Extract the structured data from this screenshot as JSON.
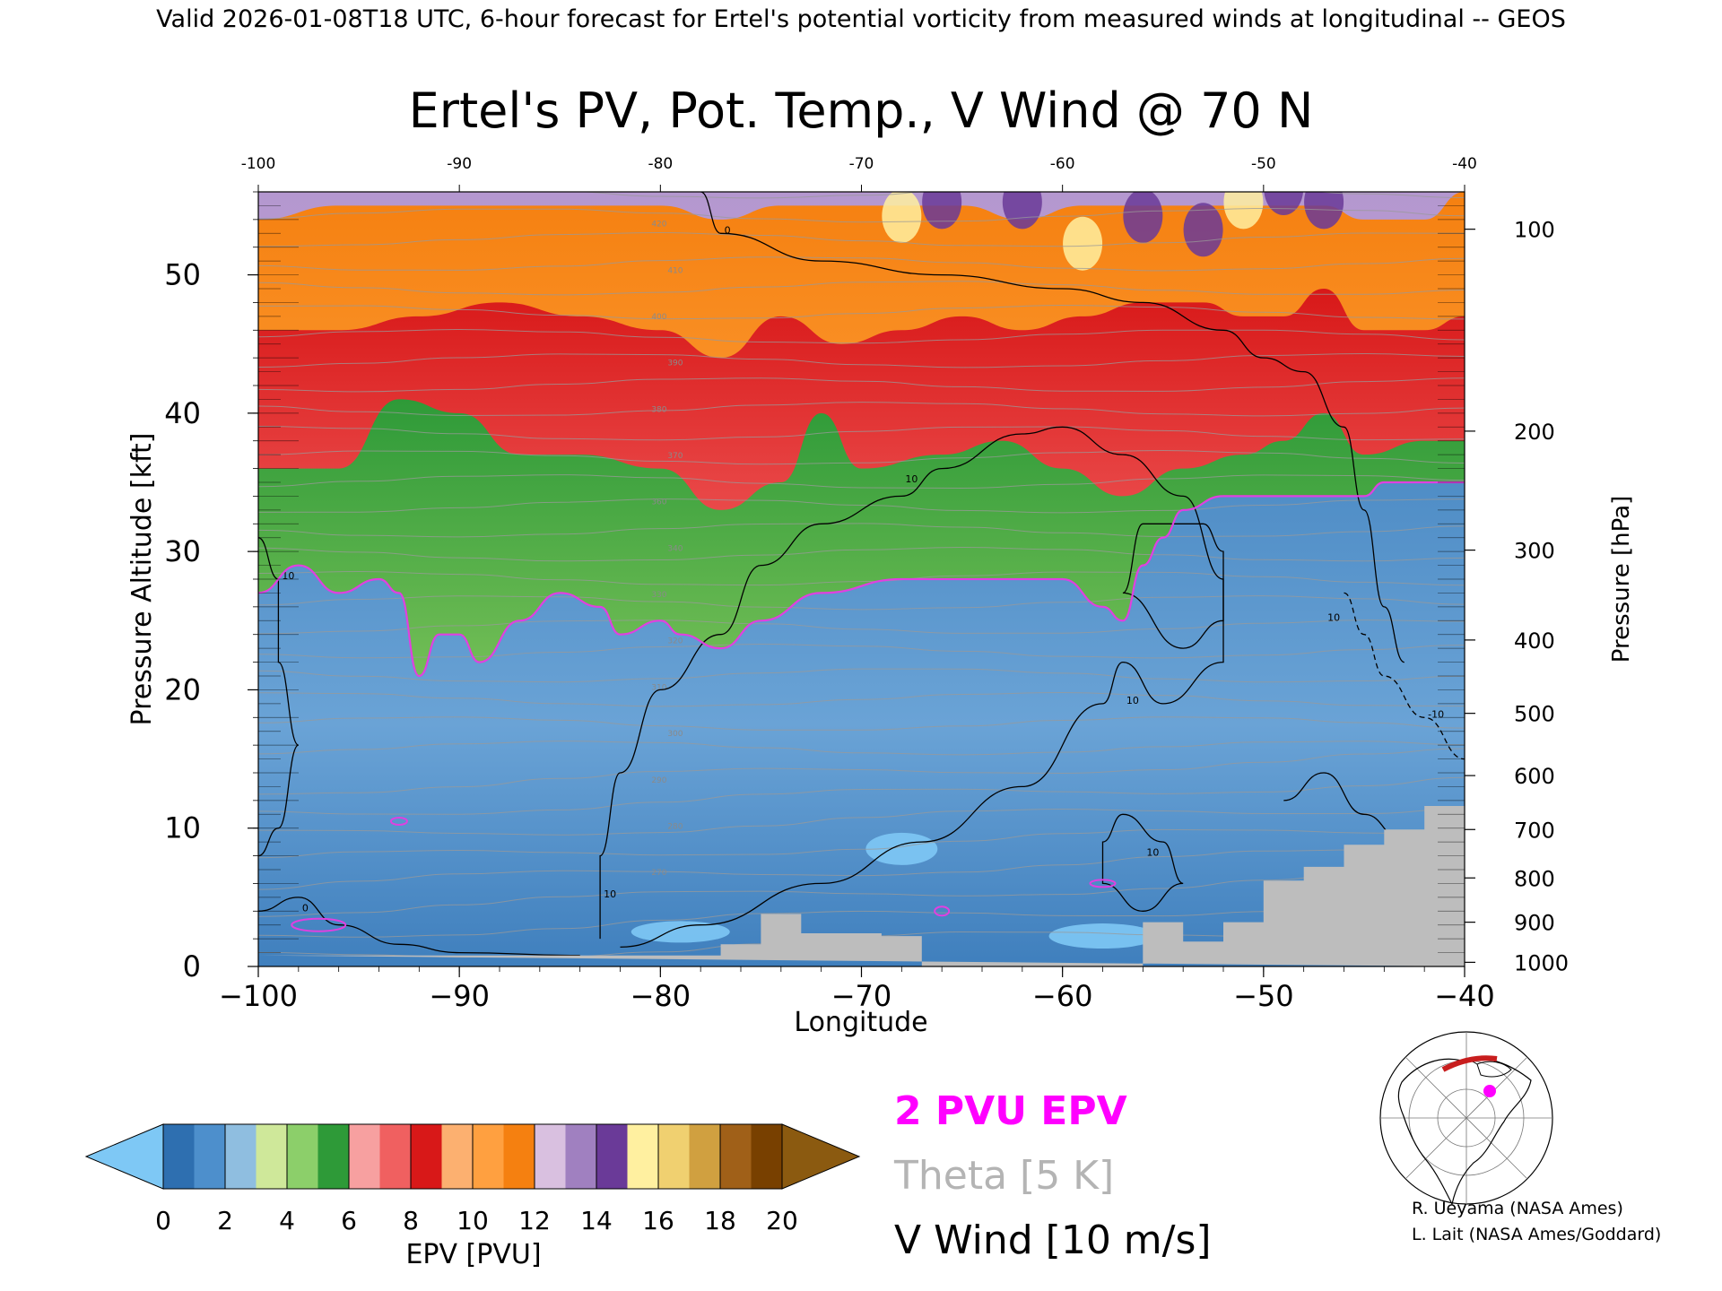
{
  "header": {
    "valid_line": "Valid 2026-01-08T18 UTC, 6-hour forecast for Ertel's potential vorticity from measured winds at longitudinal -- GEOS"
  },
  "chart_data": {
    "type": "heatmap",
    "title": "Ertel's PV, Pot. Temp., V Wind @ 70 N",
    "xlabel": "Longitude",
    "ylabel": "Pressure Altitude [kft]",
    "y2label": "Pressure [hPa]",
    "xlim": [
      -100,
      -40
    ],
    "ylim": [
      0,
      56
    ],
    "x_ticks": [
      -100,
      -90,
      -80,
      -70,
      -60,
      -50,
      -40
    ],
    "x_tick_labels": [
      "−100",
      "−90",
      "−80",
      "−70",
      "−60",
      "−50",
      "−40"
    ],
    "x_top_tick_labels": [
      "-100",
      "-90",
      "-80",
      "-70",
      "-60",
      "-50",
      "-40"
    ],
    "y_ticks": [
      0,
      10,
      20,
      30,
      40,
      50
    ],
    "y_tick_labels": [
      "0",
      "10",
      "20",
      "30",
      "40",
      "50"
    ],
    "pressure_ticks": [
      {
        "label": "100",
        "kft": 53.3
      },
      {
        "label": "200",
        "kft": 38.7
      },
      {
        "label": "300",
        "kft": 30.1
      },
      {
        "label": "400",
        "kft": 23.6
      },
      {
        "label": "500",
        "kft": 18.3
      },
      {
        "label": "600",
        "kft": 13.8
      },
      {
        "label": "700",
        "kft": 9.9
      },
      {
        "label": "800",
        "kft": 6.4
      },
      {
        "label": "900",
        "kft": 3.2
      },
      {
        "label": "1000",
        "kft": 0.3
      }
    ],
    "pv_2pvu_line": [
      [
        -100,
        27
      ],
      [
        -98,
        29
      ],
      [
        -96,
        27
      ],
      [
        -94,
        28
      ],
      [
        -93,
        27
      ],
      [
        -92,
        21
      ],
      [
        -91,
        24
      ],
      [
        -90,
        24
      ],
      [
        -89,
        22
      ],
      [
        -87,
        25
      ],
      [
        -85,
        27
      ],
      [
        -83,
        26
      ],
      [
        -82,
        24
      ],
      [
        -80,
        25
      ],
      [
        -79,
        24
      ],
      [
        -77,
        23
      ],
      [
        -75,
        25
      ],
      [
        -72,
        27
      ],
      [
        -68,
        28
      ],
      [
        -63,
        28
      ],
      [
        -60,
        28
      ],
      [
        -58,
        26
      ],
      [
        -57,
        25
      ],
      [
        -56,
        29
      ],
      [
        -55,
        31
      ],
      [
        -54,
        33
      ],
      [
        -52,
        34
      ],
      [
        -49,
        34
      ],
      [
        -47,
        34
      ],
      [
        -45,
        34
      ],
      [
        -44,
        35
      ],
      [
        -42,
        35
      ],
      [
        -40,
        35
      ]
    ],
    "pv_bands": [
      {
        "name": "green",
        "top": [
          [
            -100,
            36
          ],
          [
            -96,
            36
          ],
          [
            -93,
            41
          ],
          [
            -90,
            40
          ],
          [
            -87,
            37
          ],
          [
            -84,
            37
          ],
          [
            -80,
            36
          ],
          [
            -77,
            33
          ],
          [
            -74,
            35
          ],
          [
            -72,
            40
          ],
          [
            -70,
            36
          ],
          [
            -66,
            37
          ],
          [
            -63,
            38
          ],
          [
            -60,
            36
          ],
          [
            -57,
            34
          ],
          [
            -54,
            36
          ],
          [
            -51,
            37
          ],
          [
            -49,
            38
          ],
          [
            -47,
            40
          ],
          [
            -45,
            37
          ],
          [
            -42,
            38
          ],
          [
            -40,
            38
          ]
        ]
      },
      {
        "name": "red",
        "top": [
          [
            -100,
            46
          ],
          [
            -96,
            46
          ],
          [
            -92,
            47
          ],
          [
            -88,
            48
          ],
          [
            -84,
            47
          ],
          [
            -80,
            46
          ],
          [
            -77,
            44
          ],
          [
            -74,
            47
          ],
          [
            -71,
            45
          ],
          [
            -68,
            46
          ],
          [
            -65,
            47
          ],
          [
            -62,
            46
          ],
          [
            -59,
            47
          ],
          [
            -56,
            48
          ],
          [
            -53,
            48
          ],
          [
            -51,
            47
          ],
          [
            -49,
            47
          ],
          [
            -47,
            49
          ],
          [
            -45,
            46
          ],
          [
            -42,
            46
          ],
          [
            -40,
            47
          ]
        ]
      },
      {
        "name": "orange",
        "top": [
          [
            -100,
            54
          ],
          [
            -96,
            55
          ],
          [
            -92,
            55
          ],
          [
            -88,
            55
          ],
          [
            -84,
            55
          ],
          [
            -80,
            55
          ],
          [
            -77,
            54
          ],
          [
            -74,
            55
          ],
          [
            -71,
            55
          ],
          [
            -68,
            55
          ],
          [
            -65,
            55
          ],
          [
            -62,
            54
          ],
          [
            -59,
            55
          ],
          [
            -56,
            55
          ],
          [
            -53,
            55
          ],
          [
            -51,
            55
          ],
          [
            -49,
            55
          ],
          [
            -47,
            55
          ],
          [
            -45,
            54
          ],
          [
            -42,
            54
          ],
          [
            -40,
            56
          ]
        ]
      }
    ],
    "high_pv_cells": [
      [
        -68,
        54
      ],
      [
        -66,
        55
      ],
      [
        -62,
        55
      ],
      [
        -59,
        52
      ],
      [
        -56,
        54
      ],
      [
        -53,
        53
      ],
      [
        -51,
        55
      ],
      [
        -49,
        56
      ],
      [
        -47,
        55
      ]
    ],
    "theta_labels": [
      "420",
      "410",
      "400",
      "390",
      "380",
      "370",
      "360",
      "340",
      "330",
      "320",
      "310",
      "300",
      "290",
      "280",
      "270"
    ],
    "vwind_contour_labels": [
      "0",
      "10",
      "10",
      "10",
      "10",
      "10",
      "0",
      "0",
      "-10",
      "10"
    ],
    "terrain": [
      [
        -100,
        0.8
      ],
      [
        -77,
        0.8
      ],
      [
        -77,
        1.6
      ],
      [
        -75,
        1.6
      ],
      [
        -75,
        3.8
      ],
      [
        -73,
        3.8
      ],
      [
        -73,
        2.4
      ],
      [
        -69,
        2.4
      ],
      [
        -69,
        2.2
      ],
      [
        -67,
        2.2
      ],
      [
        -67,
        0
      ],
      [
        -56,
        0
      ],
      [
        -56,
        3.2
      ],
      [
        -54,
        3.2
      ],
      [
        -54,
        1.8
      ],
      [
        -52,
        1.8
      ],
      [
        -52,
        3.2
      ],
      [
        -50,
        3.2
      ],
      [
        -50,
        6.2
      ],
      [
        -48,
        6.2
      ],
      [
        -48,
        7.2
      ],
      [
        -46,
        7.2
      ],
      [
        -46,
        8.8
      ],
      [
        -44,
        8.8
      ],
      [
        -44,
        9.9
      ],
      [
        -42,
        9.9
      ],
      [
        -42,
        11.6
      ],
      [
        -40,
        11.6
      ],
      [
        -40,
        0
      ]
    ],
    "colorbar": {
      "label": "EPV [PVU]",
      "ticks": [
        "0",
        "2",
        "4",
        "6",
        "8",
        "10",
        "12",
        "14",
        "16",
        "18",
        "20"
      ],
      "colors": [
        "#2e6fb0",
        "#4d8fcc",
        "#8fbee0",
        "#cfe89a",
        "#8ccf6a",
        "#2e9a38",
        "#f7a0a0",
        "#f06060",
        "#d81818",
        "#fcb070",
        "#ffa040",
        "#f58010",
        "#d9c0e0",
        "#a080c0",
        "#6a3a98",
        "#fff0a0",
        "#f0d070",
        "#d0a040",
        "#a06018",
        "#784000"
      ],
      "under_color": "#7ec8f5",
      "over_color": "#8b5a10"
    },
    "legend": [
      {
        "label": "2 PVU EPV",
        "color": "#ff00ff"
      },
      {
        "label": "Theta [5 K]",
        "color": "#b4b4b4"
      },
      {
        "label": "V Wind [10 m/s]",
        "color": "#000000"
      }
    ],
    "colors": {
      "under": "#7ec8f5",
      "trop": "#5b95cc",
      "pv_line": "#e040e0",
      "terrain": "#bdbdbd",
      "theta": "#9a9a9a"
    }
  },
  "credits": {
    "line1": "R. Ueyama (NASA Ames)",
    "line2": "L. Lait (NASA Ames/Goddard)"
  },
  "inset_map": {
    "marker_color": "#ff00ff",
    "track_color": "#c81e1e"
  }
}
